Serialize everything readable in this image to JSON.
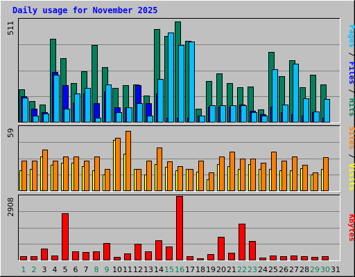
{
  "title": "Daily usage for November 2025",
  "colors": {
    "background": "#c0c0c0",
    "plot_bg": "#c0c0c0",
    "grid": "#808080",
    "hits": "#00805c",
    "files": "#0000ff",
    "pages": "#00c0ff",
    "visits": "#ffff00",
    "sites": "#ff8000",
    "kbytes": "#ff0000",
    "title": "#0000ff",
    "weekend_day": "#00805c",
    "weekday_day": "#000000"
  },
  "chart_data": [
    {
      "type": "bar",
      "panel": "hits-files-pages",
      "title": "Daily usage for November 2025",
      "ymax_label": "511",
      "ylim": [
        0,
        511
      ],
      "categories": [
        "1",
        "2",
        "3",
        "4",
        "5",
        "6",
        "7",
        "8",
        "9",
        "10",
        "11",
        "12",
        "13",
        "14",
        "15",
        "16",
        "17",
        "18",
        "19",
        "20",
        "21",
        "22",
        "23",
        "24",
        "25",
        "26",
        "27",
        "28",
        "29",
        "30",
        "31"
      ],
      "series": [
        {
          "name": "Hits",
          "values": [
            165,
            105,
            90,
            415,
            320,
            195,
            255,
            383,
            275,
            170,
            185,
            190,
            135,
            463,
            430,
            500,
            405,
            70,
            205,
            245,
            195,
            175,
            180,
            65,
            350,
            230,
            310,
            175,
            235,
            190,
            0
          ]
        },
        {
          "name": "Files",
          "values": [
            130,
            70,
            50,
            250,
            185,
            100,
            145,
            95,
            155,
            75,
            75,
            185,
            95,
            145,
            25,
            25,
            25,
            35,
            80,
            80,
            80,
            90,
            60,
            40,
            80,
            50,
            40,
            35,
            50,
            25,
            0
          ]
        },
        {
          "name": "Pages",
          "values": [
            125,
            35,
            45,
            235,
            70,
            145,
            170,
            25,
            190,
            50,
            75,
            95,
            35,
            215,
            445,
            385,
            400,
            35,
            85,
            85,
            85,
            85,
            50,
            35,
            265,
            90,
            290,
            120,
            55,
            115,
            0
          ]
        }
      ],
      "legend": [
        {
          "label": "Pages",
          "color": "#00c0ff"
        },
        {
          "label": "Files",
          "color": "#0000ff"
        },
        {
          "label": "Hits",
          "color": "#00805c"
        }
      ],
      "legend_separator": " / "
    },
    {
      "type": "bar",
      "panel": "visits-sites",
      "ymax_label": "59",
      "ylim": [
        0,
        59
      ],
      "categories": [
        "1",
        "2",
        "3",
        "4",
        "5",
        "6",
        "7",
        "8",
        "9",
        "10",
        "11",
        "12",
        "13",
        "14",
        "15",
        "16",
        "17",
        "18",
        "19",
        "20",
        "21",
        "22",
        "23",
        "24",
        "25",
        "26",
        "27",
        "28",
        "29",
        "30",
        "31"
      ],
      "series": [
        {
          "name": "Visits",
          "values": [
            19,
            20,
            32,
            24,
            26,
            26,
            23,
            19,
            15,
            47,
            34,
            20,
            15,
            25,
            22,
            19,
            20,
            18,
            11,
            25,
            23,
            20,
            25,
            20,
            20,
            19,
            19,
            21,
            15,
            20,
            0
          ]
        },
        {
          "name": "Sites",
          "values": [
            28,
            28,
            38,
            28,
            32,
            32,
            28,
            32,
            20,
            49,
            55,
            20,
            28,
            40,
            27,
            23,
            20,
            28,
            17,
            32,
            36,
            30,
            30,
            26,
            36,
            28,
            32,
            24,
            17,
            31,
            0
          ]
        }
      ],
      "legend": [
        {
          "label": "Sites",
          "color": "#ff8000"
        },
        {
          "label": "Visits",
          "color": "#ffff00"
        }
      ],
      "legend_separator": " / "
    },
    {
      "type": "bar",
      "panel": "kbytes",
      "ymax_label": "2908",
      "ylim": [
        0,
        2908
      ],
      "categories": [
        "1",
        "2",
        "3",
        "4",
        "5",
        "6",
        "7",
        "8",
        "9",
        "10",
        "11",
        "12",
        "13",
        "14",
        "15",
        "16",
        "17",
        "18",
        "19",
        "20",
        "21",
        "22",
        "23",
        "24",
        "25",
        "26",
        "27",
        "28",
        "29",
        "30",
        "31"
      ],
      "series": [
        {
          "name": "KBytes",
          "values": [
            180,
            180,
            530,
            230,
            2120,
            410,
            380,
            410,
            770,
            150,
            320,
            740,
            410,
            900,
            640,
            2900,
            180,
            100,
            280,
            1050,
            340,
            1660,
            890,
            120,
            230,
            180,
            230,
            200,
            170,
            200,
            0
          ]
        }
      ],
      "legend": [
        {
          "label": "KBytes",
          "color": "#ff0000"
        }
      ]
    }
  ],
  "days": [
    "1",
    "2",
    "3",
    "4",
    "5",
    "6",
    "7",
    "8",
    "9",
    "10",
    "11",
    "12",
    "13",
    "14",
    "15",
    "16",
    "17",
    "18",
    "19",
    "20",
    "21",
    "22",
    "23",
    "24",
    "25",
    "26",
    "27",
    "28",
    "29",
    "30",
    "31"
  ],
  "weekend_days": [
    "1",
    "2",
    "8",
    "9",
    "15",
    "16",
    "22",
    "23",
    "29",
    "30"
  ]
}
